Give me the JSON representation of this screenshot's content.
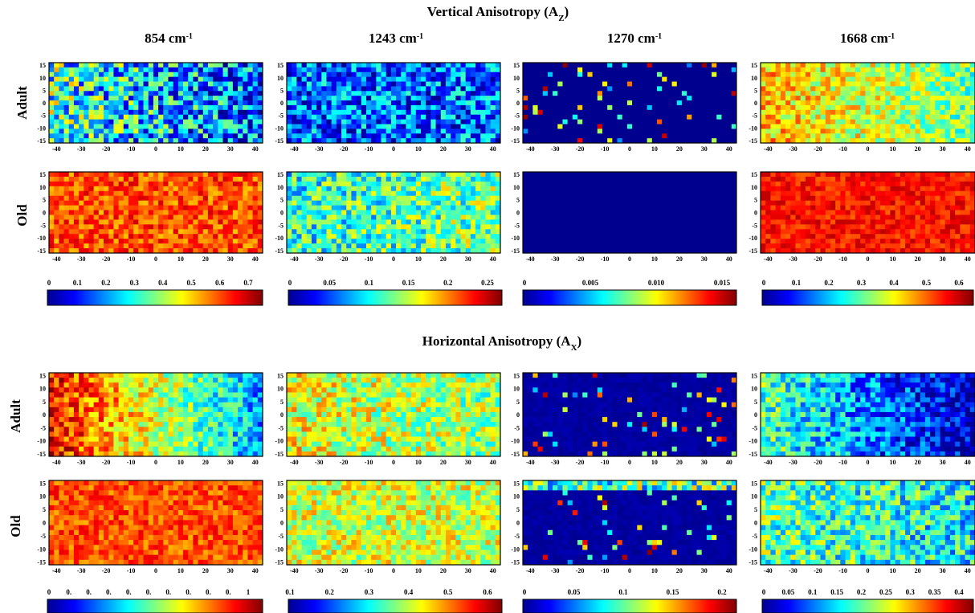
{
  "figure": {
    "sections": [
      {
        "title_main": "Vertical Anisotropy (A",
        "title_sub": "Z",
        "title_end": ")"
      },
      {
        "title_main": "Horizontal Anisotropy (A",
        "title_sub": "X",
        "title_end": ")"
      }
    ],
    "columns": [
      {
        "label": "854 cm",
        "sup": "-1"
      },
      {
        "label": "1243 cm",
        "sup": "-1"
      },
      {
        "label": "1270 cm",
        "sup": "-1"
      },
      {
        "label": "1668 cm",
        "sup": "-1"
      }
    ],
    "rows": [
      "Adult",
      "Old"
    ],
    "colormap": [
      "#00008f",
      "#0000ff",
      "#0080ff",
      "#00ffff",
      "#80ff80",
      "#ffff00",
      "#ff8000",
      "#ff0000",
      "#800000"
    ]
  },
  "chart_data": [
    {
      "type": "heatmap",
      "section": "Vertical Anisotropy (AZ)",
      "row": "Adult",
      "column": "854 cm-1",
      "x_ticks": [
        -40,
        -30,
        -20,
        -10,
        0,
        10,
        20,
        30,
        40
      ],
      "y_ticks": [
        15,
        10,
        5,
        0,
        -5,
        -10,
        -15
      ],
      "xlim": [
        -43,
        43
      ],
      "ylim": [
        -16,
        16
      ],
      "base": 0.32,
      "spread": 0.28,
      "gradient": -0.12,
      "sparse": false
    },
    {
      "type": "heatmap",
      "section": "Vertical Anisotropy (AZ)",
      "row": "Adult",
      "column": "1243 cm-1",
      "x_ticks": [
        -40,
        -30,
        -20,
        -10,
        0,
        10,
        20,
        30,
        40
      ],
      "y_ticks": [
        15,
        10,
        5,
        0,
        -5,
        -10,
        -15
      ],
      "xlim": [
        -43,
        43
      ],
      "ylim": [
        -16,
        16
      ],
      "base": 0.22,
      "spread": 0.22,
      "gradient": 0,
      "sparse": false
    },
    {
      "type": "heatmap",
      "section": "Vertical Anisotropy (AZ)",
      "row": "Adult",
      "column": "1270 cm-1",
      "x_ticks": [
        -40,
        -30,
        -20,
        -10,
        0,
        10,
        20,
        30,
        40
      ],
      "y_ticks": [
        15,
        10,
        5,
        0,
        -5,
        -10,
        -15
      ],
      "xlim": [
        -43,
        43
      ],
      "ylim": [
        -16,
        16
      ],
      "base": 0.0,
      "spread": 0,
      "gradient": 0,
      "sparse": true,
      "density": 0.08
    },
    {
      "type": "heatmap",
      "section": "Vertical Anisotropy (AZ)",
      "row": "Adult",
      "column": "1668 cm-1",
      "x_ticks": [
        -40,
        -30,
        -20,
        -10,
        0,
        10,
        20,
        30,
        40
      ],
      "y_ticks": [
        15,
        10,
        5,
        0,
        -5,
        -10,
        -15
      ],
      "xlim": [
        -43,
        43
      ],
      "ylim": [
        -16,
        16
      ],
      "base": 0.58,
      "spread": 0.16,
      "gradient": -0.1,
      "sparse": false
    },
    {
      "type": "heatmap",
      "section": "Vertical Anisotropy (AZ)",
      "row": "Old",
      "column": "854 cm-1",
      "x_ticks": [
        -40,
        -30,
        -20,
        -10,
        0,
        10,
        20,
        30,
        40
      ],
      "y_ticks": [
        15,
        10,
        5,
        0,
        -5,
        -10,
        -15
      ],
      "xlim": [
        -43,
        43
      ],
      "ylim": [
        -16,
        16
      ],
      "base": 0.8,
      "spread": 0.12,
      "gradient": 0,
      "sparse": false
    },
    {
      "type": "heatmap",
      "section": "Vertical Anisotropy (AZ)",
      "row": "Old",
      "column": "1243 cm-1",
      "x_ticks": [
        -40,
        -30,
        -20,
        -10,
        0,
        10,
        20,
        30,
        40
      ],
      "y_ticks": [
        15,
        10,
        5,
        0,
        -5,
        -10,
        -15
      ],
      "xlim": [
        -43,
        43
      ],
      "ylim": [
        -16,
        16
      ],
      "base": 0.45,
      "spread": 0.2,
      "gradient": 0.05,
      "sparse": false
    },
    {
      "type": "heatmap",
      "section": "Vertical Anisotropy (AZ)",
      "row": "Old",
      "column": "1270 cm-1",
      "x_ticks": [
        -40,
        -30,
        -20,
        -10,
        0,
        10,
        20,
        30,
        40
      ],
      "y_ticks": [
        15,
        10,
        5,
        0,
        -5,
        -10,
        -15
      ],
      "xlim": [
        -43,
        43
      ],
      "ylim": [
        -16,
        16
      ],
      "base": 0.0,
      "spread": 0,
      "gradient": 0,
      "sparse": false,
      "uniform": true
    },
    {
      "type": "heatmap",
      "section": "Vertical Anisotropy (AZ)",
      "row": "Old",
      "column": "1668 cm-1",
      "x_ticks": [
        -40,
        -30,
        -20,
        -10,
        0,
        10,
        20,
        30,
        40
      ],
      "y_ticks": [
        15,
        10,
        5,
        0,
        -5,
        -10,
        -15
      ],
      "xlim": [
        -43,
        43
      ],
      "ylim": [
        -16,
        16
      ],
      "base": 0.86,
      "spread": 0.08,
      "gradient": 0,
      "sparse": false
    },
    {
      "type": "heatmap",
      "section": "Horizontal Anisotropy (AX)",
      "row": "Adult",
      "column": "854 cm-1",
      "x_ticks": [
        -40,
        -30,
        -20,
        -10,
        0,
        10,
        20,
        30,
        40
      ],
      "y_ticks": [
        15,
        10,
        5,
        0,
        -5,
        -10,
        -15
      ],
      "xlim": [
        -43,
        43
      ],
      "ylim": [
        -16,
        16
      ],
      "base": 0.58,
      "spread": 0.16,
      "gradient": -0.3,
      "sparse": false
    },
    {
      "type": "heatmap",
      "section": "Horizontal Anisotropy (AX)",
      "row": "Adult",
      "column": "1243 cm-1",
      "x_ticks": [
        -40,
        -30,
        -20,
        -10,
        0,
        10,
        20,
        30,
        40
      ],
      "y_ticks": [
        15,
        10,
        5,
        0,
        -5,
        -10,
        -15
      ],
      "xlim": [
        -43,
        43
      ],
      "ylim": [
        -16,
        16
      ],
      "base": 0.56,
      "spread": 0.18,
      "gradient": -0.05,
      "sparse": false
    },
    {
      "type": "heatmap",
      "section": "Horizontal Anisotropy (AX)",
      "row": "Adult",
      "column": "1270 cm-1",
      "x_ticks": [
        -40,
        -30,
        -20,
        -10,
        0,
        10,
        20,
        30,
        40
      ],
      "y_ticks": [
        15,
        10,
        5,
        0,
        -5,
        -10,
        -15
      ],
      "xlim": [
        -43,
        43
      ],
      "ylim": [
        -16,
        16
      ],
      "base": 0.08,
      "spread": 0.04,
      "gradient": 0,
      "sparse": true,
      "density": 0.06
    },
    {
      "type": "heatmap",
      "section": "Horizontal Anisotropy (AX)",
      "row": "Adult",
      "column": "1668 cm-1",
      "x_ticks": [
        -40,
        -30,
        -20,
        -10,
        0,
        10,
        20,
        30,
        40
      ],
      "y_ticks": [
        15,
        10,
        5,
        0,
        -5,
        -10,
        -15
      ],
      "xlim": [
        -43,
        43
      ],
      "ylim": [
        -16,
        16
      ],
      "base": 0.25,
      "spread": 0.18,
      "gradient": -0.2,
      "sparse": false
    },
    {
      "type": "heatmap",
      "section": "Horizontal Anisotropy (AX)",
      "row": "Old",
      "column": "854 cm-1",
      "x_ticks": [
        -40,
        -30,
        -20,
        -10,
        0,
        10,
        20,
        30,
        40
      ],
      "y_ticks": [
        15,
        10,
        5,
        0,
        -5,
        -10,
        -15
      ],
      "xlim": [
        -43,
        43
      ],
      "ylim": [
        -16,
        16
      ],
      "base": 0.8,
      "spread": 0.1,
      "gradient": 0,
      "sparse": false
    },
    {
      "type": "heatmap",
      "section": "Horizontal Anisotropy (AX)",
      "row": "Old",
      "column": "1243 cm-1",
      "x_ticks": [
        -40,
        -30,
        -20,
        -10,
        0,
        10,
        20,
        30,
        40
      ],
      "y_ticks": [
        15,
        10,
        5,
        0,
        -5,
        -10,
        -15
      ],
      "xlim": [
        -43,
        43
      ],
      "ylim": [
        -16,
        16
      ],
      "base": 0.58,
      "spread": 0.16,
      "gradient": 0,
      "sparse": false
    },
    {
      "type": "heatmap",
      "section": "Horizontal Anisotropy (AX)",
      "row": "Old",
      "column": "1270 cm-1",
      "x_ticks": [
        -40,
        -30,
        -20,
        -10,
        0,
        10,
        20,
        30,
        40
      ],
      "y_ticks": [
        15,
        10,
        5,
        0,
        -5,
        -10,
        -15
      ],
      "xlim": [
        -43,
        43
      ],
      "ylim": [
        -16,
        16
      ],
      "base": 0.08,
      "spread": 0.06,
      "gradient": 0,
      "sparse": true,
      "density": 0.05,
      "top_band": true
    },
    {
      "type": "heatmap",
      "section": "Horizontal Anisotropy (AX)",
      "row": "Old",
      "column": "1668 cm-1",
      "x_ticks": [
        -40,
        -30,
        -20,
        -10,
        0,
        10,
        20,
        30,
        40
      ],
      "y_ticks": [
        15,
        10,
        5,
        0,
        -5,
        -10,
        -15
      ],
      "xlim": [
        -43,
        43
      ],
      "ylim": [
        -16,
        16
      ],
      "base": 0.42,
      "spread": 0.2,
      "gradient": -0.05,
      "sparse": false
    }
  ],
  "colorbars": [
    {
      "section": "Vertical Anisotropy (AZ)",
      "column": "854 cm-1",
      "ticks": [
        "0",
        "0.1",
        "0.2",
        "0.3",
        "0.4",
        "0.5",
        "0.6",
        "0.7"
      ]
    },
    {
      "section": "Vertical Anisotropy (AZ)",
      "column": "1243 cm-1",
      "ticks": [
        "0",
        "0.05",
        "0.1",
        "0.15",
        "0.2",
        "0.25"
      ]
    },
    {
      "section": "Vertical Anisotropy (AZ)",
      "column": "1270 cm-1",
      "ticks": [
        "0",
        "0.005",
        "0.010",
        "0.015"
      ]
    },
    {
      "section": "Vertical Anisotropy (AZ)",
      "column": "1668 cm-1",
      "ticks": [
        "0",
        "0.1",
        "0.2",
        "0.3",
        "0.4",
        "0.5",
        "0.6"
      ]
    },
    {
      "section": "Horizontal Anisotropy (AX)",
      "column": "854 cm-1",
      "ticks": [
        "0",
        "0.",
        "0.",
        "0.",
        "0.",
        "0.",
        "0.",
        "0.",
        "0.",
        "0.",
        "1"
      ]
    },
    {
      "section": "Horizontal Anisotropy (AX)",
      "column": "1243 cm-1",
      "ticks": [
        "0.1",
        "0.2",
        "0.3",
        "0.4",
        "0.5",
        "0.6"
      ]
    },
    {
      "section": "Horizontal Anisotropy (AX)",
      "column": "1270 cm-1",
      "ticks": [
        "0",
        "0.05",
        "0.1",
        "0.15",
        "0.2"
      ]
    },
    {
      "section": "Horizontal Anisotropy (AX)",
      "column": "1668 cm-1",
      "ticks": [
        "0",
        "0.05",
        "0.1",
        "0.15",
        "0.2",
        "0.25",
        "0.3",
        "0.35",
        "0.4"
      ]
    }
  ]
}
